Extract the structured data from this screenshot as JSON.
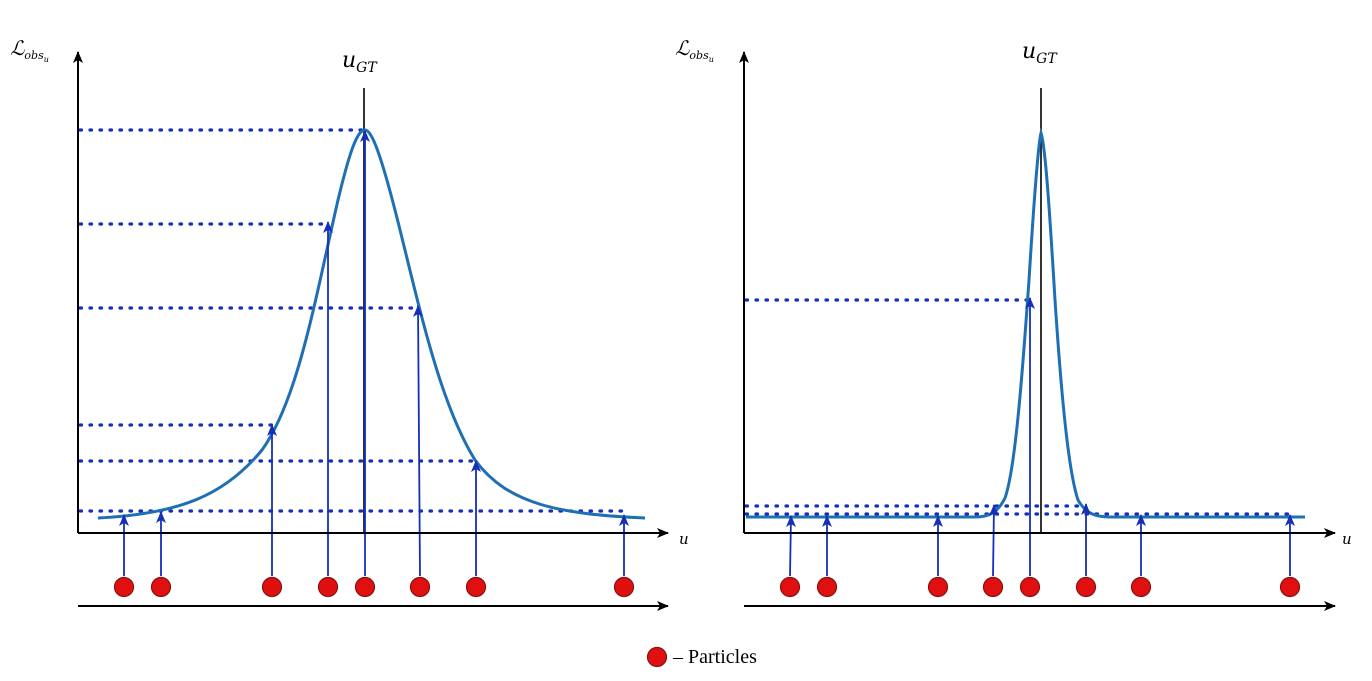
{
  "panels": [
    {
      "id": "left",
      "y_label": "ℒ",
      "y_label_sub": "obs",
      "y_label_subsub": "u",
      "x_label": "u",
      "gt_label": "u",
      "gt_label_sub": "GT",
      "curve_peak": "broad",
      "particle_count": 8
    },
    {
      "id": "right",
      "y_label": "ℒ",
      "y_label_sub": "obs",
      "y_label_subsub": "u",
      "x_label": "u",
      "gt_label": "u",
      "gt_label_sub": "GT",
      "curve_peak": "narrow",
      "particle_count": 8
    }
  ],
  "legend": {
    "marker": "particle",
    "text": "– Particles"
  },
  "colors": {
    "curve": "#1f6fb5",
    "sample": "#1430b8",
    "particle": "#e01010"
  }
}
